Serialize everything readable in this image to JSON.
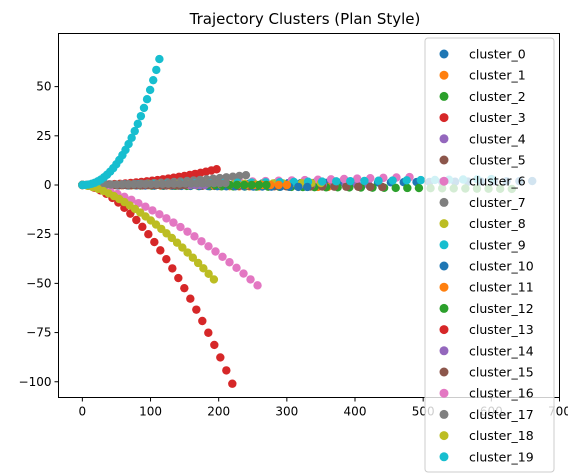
{
  "chart_data": {
    "type": "scatter",
    "title": "Trajectory Clusters (Plan Style)",
    "xlabel": "",
    "ylabel": "",
    "xlim": [
      -35,
      700
    ],
    "ylim": [
      -108,
      77
    ],
    "xticks": [
      0,
      100,
      200,
      300,
      400,
      500,
      600,
      700
    ],
    "yticks": [
      -100,
      -75,
      -50,
      -25,
      0,
      25,
      50
    ],
    "xtick_labels": [
      "0",
      "100",
      "200",
      "300",
      "400",
      "500",
      "600",
      "700"
    ],
    "ytick_labels": [
      "−100",
      "−75",
      "−50",
      "−25",
      "0",
      "25",
      "50"
    ],
    "grid": false,
    "legend_position": "upper-right",
    "series": [
      {
        "name": "cluster_0",
        "color": "#1f77b4",
        "end": [
          660,
          2
        ],
        "n": 36,
        "curve": 1.0
      },
      {
        "name": "cluster_1",
        "color": "#ff7f0e",
        "end": [
          360,
          -1
        ],
        "n": 26,
        "curve": 1.0
      },
      {
        "name": "cluster_2",
        "color": "#2ca02c",
        "end": [
          630,
          -2
        ],
        "n": 38,
        "curve": 1.0
      },
      {
        "name": "cluster_3",
        "color": "#d62728",
        "end": [
          197,
          8
        ],
        "n": 26,
        "curve": 2.0
      },
      {
        "name": "cluster_4",
        "color": "#9467bd",
        "end": [
          420,
          0
        ],
        "n": 26,
        "curve": 1.0
      },
      {
        "name": "cluster_5",
        "color": "#8c564b",
        "end": [
          440,
          -1
        ],
        "n": 26,
        "curve": 1.0
      },
      {
        "name": "cluster_6",
        "color": "#e377c2",
        "end": [
          480,
          4
        ],
        "n": 26,
        "curve": 1.2
      },
      {
        "name": "cluster_7",
        "color": "#7f7f7f",
        "end": [
          240,
          5
        ],
        "n": 26,
        "curve": 2.0
      },
      {
        "name": "cluster_8",
        "color": "#bcbd22",
        "end": [
          350,
          1
        ],
        "n": 26,
        "curve": 1.0
      },
      {
        "name": "cluster_9",
        "color": "#17becf",
        "end": [
          600,
          3
        ],
        "n": 30,
        "curve": 1.0
      },
      {
        "name": "cluster_10",
        "color": "#1f77b4",
        "end": [
          330,
          -1
        ],
        "n": 26,
        "curve": 1.0
      },
      {
        "name": "cluster_11",
        "color": "#ff7f0e",
        "end": [
          300,
          0
        ],
        "n": 26,
        "curve": 1.0
      },
      {
        "name": "cluster_12",
        "color": "#2ca02c",
        "end": [
          270,
          0
        ],
        "n": 26,
        "curve": 1.0
      },
      {
        "name": "cluster_13",
        "color": "#d62728",
        "end": [
          220,
          -101
        ],
        "n": 26,
        "curve": 1.7
      },
      {
        "name": "cluster_14",
        "color": "#9467bd",
        "end": [
          180,
          0
        ],
        "n": 26,
        "curve": 1.0
      },
      {
        "name": "cluster_15",
        "color": "#8c564b",
        "end": [
          150,
          0
        ],
        "n": 26,
        "curve": 1.0
      },
      {
        "name": "cluster_16",
        "color": "#e377c2",
        "end": [
          257,
          -51
        ],
        "n": 26,
        "curve": 1.5
      },
      {
        "name": "cluster_17",
        "color": "#7f7f7f",
        "end": [
          210,
          1
        ],
        "n": 26,
        "curve": 1.0
      },
      {
        "name": "cluster_18",
        "color": "#bcbd22",
        "end": [
          193,
          -48
        ],
        "n": 26,
        "curve": 1.5
      },
      {
        "name": "cluster_19",
        "color": "#17becf",
        "end": [
          113,
          64
        ],
        "n": 26,
        "curve": 2.2
      }
    ]
  }
}
